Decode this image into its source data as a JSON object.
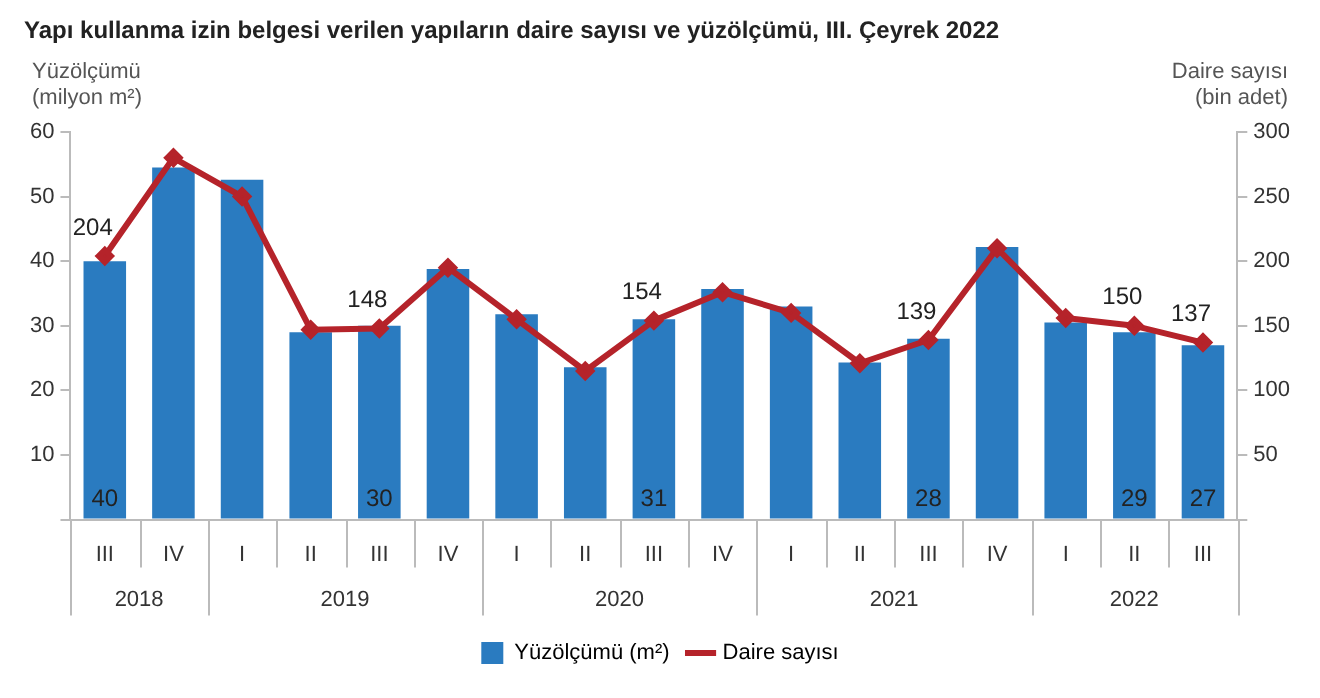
{
  "chart_data": {
    "type": "bar",
    "title": "Yapı kullanma izin belgesi verilen yapıların daire sayısı ve yüzölçümü, III. Çeyrek 2022",
    "categories": [
      "III",
      "IV",
      "I",
      "II",
      "III",
      "IV",
      "I",
      "II",
      "III",
      "IV",
      "I",
      "II",
      "III",
      "IV",
      "I",
      "II",
      "III"
    ],
    "annotations": [
      "2018",
      "2019",
      "2020",
      "2021",
      "2022"
    ],
    "ylabel": "Yüzölçümü (milyon m²)",
    "y2label": "Daire sayısı (bin adet)",
    "series": [
      {
        "name": "Yüzölçümü (m²)",
        "color": "#2a7bc0",
        "values": [
          40,
          54.5,
          52.6,
          29,
          30,
          38.8,
          31.8,
          23.6,
          31,
          35.7,
          33,
          24.3,
          28,
          42.2,
          30.5,
          29,
          27
        ],
        "value_labels": [
          "40",
          null,
          null,
          null,
          "30",
          null,
          null,
          null,
          "31",
          null,
          null,
          null,
          "28",
          null,
          null,
          "29",
          "27"
        ]
      },
      {
        "name": "Daire sayısı",
        "type": "line",
        "axis": "y2",
        "color": "#b5232a",
        "marker": "diamond",
        "values": [
          204,
          280,
          250,
          147,
          148,
          195,
          155,
          115,
          154,
          176,
          160,
          121,
          139,
          210,
          156,
          150,
          137
        ],
        "value_labels": [
          "204",
          null,
          null,
          null,
          "148",
          null,
          null,
          null,
          "154",
          null,
          null,
          null,
          "139",
          null,
          null,
          "150",
          "137"
        ]
      }
    ],
    "ylim": [
      0,
      60
    ],
    "yticks": [
      {
        "value": 0,
        "label": null
      },
      10,
      20,
      30,
      40,
      50,
      60
    ],
    "y2lim": [
      0,
      300
    ],
    "y2ticks": [
      {
        "value": 0,
        "label": null
      },
      50,
      100,
      150,
      200,
      250,
      300
    ],
    "grid": false,
    "legend": "bottom"
  }
}
